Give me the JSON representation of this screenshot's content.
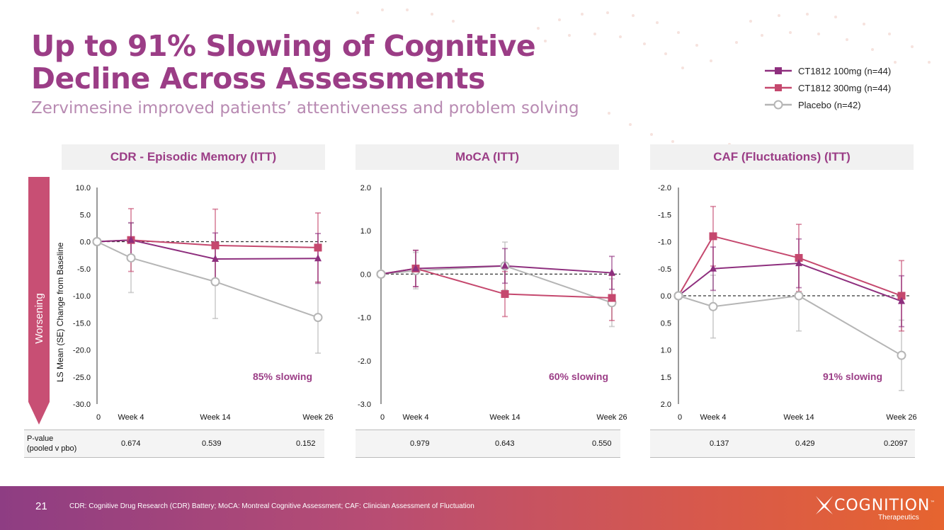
{
  "page": {
    "title_line1": "Up to 91% Slowing of Cognitive",
    "title_line2": "Decline Across Assessments",
    "subtitle": "Zervimesine improved patients’ attentiveness and problem solving",
    "worsening_label": "Worsening",
    "ylabel": "LS Mean (SE) Change from Baseline",
    "pvalue_label_line1": "P-value",
    "pvalue_label_line2": "(pooled v pbo)",
    "page_number": "21",
    "footnote": "CDR: Cognitive Drug Research (CDR) Battery; MoCA: Montreal Cognitive Assessment; CAF: Clinician Assessment of Fluctuation",
    "logo_text": "COGNITION",
    "logo_sub": "Therapeutics",
    "logo_tm": "™"
  },
  "legend": [
    {
      "label": "CT1812 100mg (n=44)",
      "color": "#8e2f7e",
      "marker": "square"
    },
    {
      "label": "CT1812 300mg (n=44)",
      "color": "#c5486e",
      "marker": "square"
    },
    {
      "label": "Placebo (n=42)",
      "color": "#b5b5b5",
      "marker": "circle"
    }
  ],
  "colors": {
    "accent": "#9b3d86",
    "series_100mg": "#8e2f7e",
    "series_300mg": "#c5486e",
    "placebo": "#b5b5b5",
    "worsening_arrow": "#c84f74"
  },
  "chart_data": [
    {
      "type": "line",
      "title": "CDR - Episodic Memory (ITT)",
      "categories": [
        "0",
        "Week 4",
        "Week 14",
        "Week 26"
      ],
      "ylim": [
        -30,
        10
      ],
      "y_ticks": [
        "10.0",
        "5.0",
        "0.0",
        "-5.0",
        "-10.0",
        "-15.0",
        "-20.0",
        "-25.0",
        "-30.0"
      ],
      "inverted": false,
      "ylabel": "LS Mean (SE) Change from Baseline",
      "annotation": "85% slowing",
      "pvalues": [
        "0.674",
        "0.539",
        "0.152"
      ],
      "series": [
        {
          "name": "CT1812 100mg (n=44)",
          "values": [
            0,
            0.3,
            -3.2,
            -3.1
          ],
          "se": [
            0,
            3.2,
            4.8,
            4.6
          ]
        },
        {
          "name": "CT1812 300mg (n=44)",
          "values": [
            0,
            0.3,
            -0.7,
            -1.1
          ],
          "se": [
            0,
            5.8,
            6.7,
            6.4
          ]
        },
        {
          "name": "Placebo (n=42)",
          "values": [
            0,
            -3.0,
            -7.4,
            -14.0
          ],
          "se": [
            0,
            6.4,
            6.8,
            6.6
          ]
        }
      ]
    },
    {
      "type": "line",
      "title": "MoCA (ITT)",
      "categories": [
        "0",
        "Week 4",
        "Week 14",
        "Week 26"
      ],
      "ylim": [
        -3,
        2
      ],
      "y_ticks": [
        "2.0",
        "1.0",
        "0.0",
        "-1.0",
        "-2.0",
        "-3.0"
      ],
      "inverted": false,
      "ylabel": "",
      "annotation": "60% slowing",
      "pvalues": [
        "0.979",
        "0.643",
        "0.550"
      ],
      "series": [
        {
          "name": "CT1812 100mg (n=44)",
          "values": [
            0,
            0.13,
            0.19,
            0.03
          ],
          "se": [
            0,
            0.42,
            0.4,
            0.38
          ]
        },
        {
          "name": "CT1812 300mg (n=44)",
          "values": [
            0,
            0.13,
            -0.46,
            -0.55
          ],
          "se": [
            0,
            0.42,
            0.52,
            0.52
          ]
        },
        {
          "name": "Placebo (n=42)",
          "values": [
            0,
            0.08,
            0.19,
            -0.66
          ],
          "se": [
            0,
            0.42,
            0.55,
            0.55
          ]
        }
      ]
    },
    {
      "type": "line",
      "title": "CAF (Fluctuations) (ITT)",
      "categories": [
        "0",
        "Week 4",
        "Week 14",
        "Week 26"
      ],
      "ylim": [
        2,
        -2
      ],
      "y_ticks": [
        "-2.0",
        "-1.5",
        "-1.0",
        "-0.5",
        "0.0",
        "0.5",
        "1.0",
        "1.5",
        "2.0"
      ],
      "inverted": true,
      "ylabel": "",
      "annotation": "91% slowing",
      "pvalues": [
        "0.137",
        "0.429",
        "0.2097"
      ],
      "series": [
        {
          "name": "CT1812 100mg (n=44)",
          "values": [
            0,
            -0.5,
            -0.6,
            0.1
          ],
          "se": [
            0,
            0.4,
            0.45,
            0.47
          ]
        },
        {
          "name": "CT1812 300mg (n=44)",
          "values": [
            0,
            -1.1,
            -0.7,
            0
          ],
          "se": [
            0,
            0.55,
            0.62,
            0.65
          ]
        },
        {
          "name": "Placebo (n=42)",
          "values": [
            0,
            0.2,
            0,
            1.1
          ],
          "se": [
            0,
            0.58,
            0.65,
            0.65
          ]
        }
      ]
    }
  ]
}
